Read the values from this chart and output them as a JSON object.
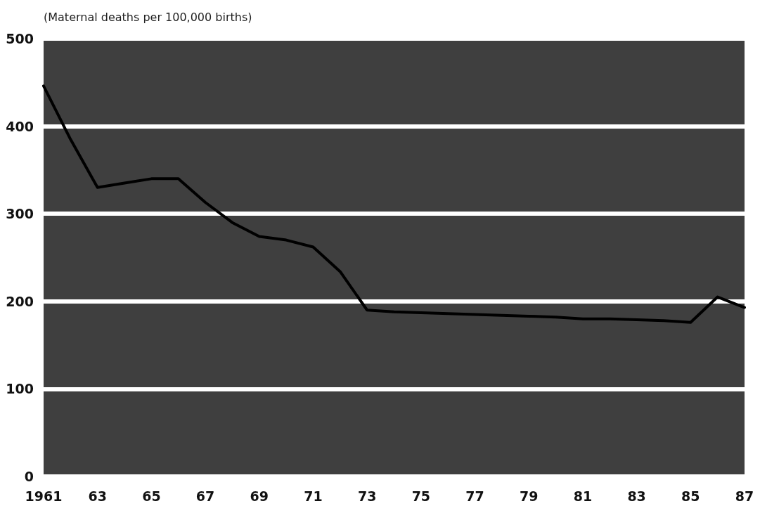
{
  "chart_data": {
    "type": "line",
    "ylabel": "(Maternal deaths per 100,000 births)",
    "x": [
      1961,
      1962,
      1963,
      1964,
      1965,
      1966,
      1967,
      1968,
      1969,
      1970,
      1971,
      1972,
      1973,
      1974,
      1975,
      1976,
      1977,
      1978,
      1979,
      1980,
      1981,
      1982,
      1983,
      1984,
      1985,
      1986,
      1987
    ],
    "series": [
      {
        "color": "#000000",
        "values": [
          446,
          385,
          330,
          335,
          340,
          340,
          313,
          290,
          274,
          270,
          262,
          234,
          190,
          188,
          187,
          186,
          185,
          184,
          183,
          182,
          180,
          180,
          179,
          178,
          176,
          205,
          193
        ]
      }
    ],
    "xlim": [
      1961,
      1987
    ],
    "xticks": [
      {
        "value": 1961,
        "label": "1961"
      },
      {
        "value": 1963,
        "label": "63"
      },
      {
        "value": 1965,
        "label": "65"
      },
      {
        "value": 1967,
        "label": "67"
      },
      {
        "value": 1969,
        "label": "69"
      },
      {
        "value": 1971,
        "label": "71"
      },
      {
        "value": 1973,
        "label": "73"
      },
      {
        "value": 1975,
        "label": "75"
      },
      {
        "value": 1977,
        "label": "77"
      },
      {
        "value": 1979,
        "label": "79"
      },
      {
        "value": 1981,
        "label": "81"
      },
      {
        "value": 1983,
        "label": "83"
      },
      {
        "value": 1985,
        "label": "85"
      },
      {
        "value": 1987,
        "label": "87"
      }
    ],
    "ylim": [
      0,
      500
    ],
    "yticks": [
      0,
      100,
      200,
      300,
      400,
      500
    ],
    "grid": "y",
    "marker": "none",
    "line_style": "solid"
  }
}
